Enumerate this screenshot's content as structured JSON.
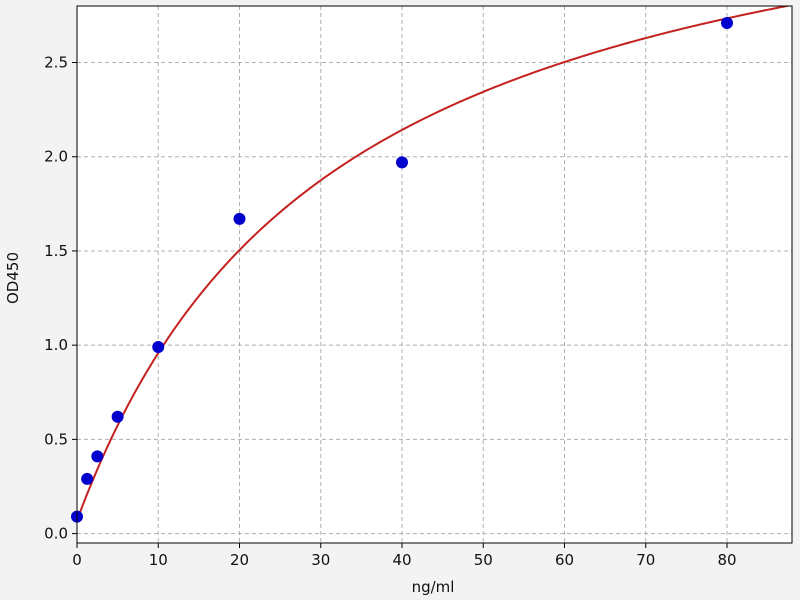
{
  "chart_data": {
    "type": "scatter",
    "title": "",
    "xlabel": "ng/ml",
    "ylabel": "OD450",
    "xlim": [
      0,
      88
    ],
    "ylim": [
      -0.05,
      2.8
    ],
    "x_ticks": [
      0,
      10,
      20,
      30,
      40,
      50,
      60,
      70,
      80
    ],
    "y_ticks": [
      0.0,
      0.5,
      1.0,
      1.5,
      2.0,
      2.5
    ],
    "x_tick_labels": [
      "0",
      "10",
      "20",
      "30",
      "40",
      "50",
      "60",
      "70",
      "80"
    ],
    "y_tick_labels": [
      "0.0",
      "0.5",
      "1.0",
      "1.5",
      "2.0",
      "2.5"
    ],
    "grid": true,
    "series": [
      {
        "kind": "points",
        "x": [
          0,
          1.25,
          2.5,
          5,
          10,
          20,
          40,
          80
        ],
        "y": [
          0.09,
          0.29,
          0.41,
          0.62,
          0.99,
          1.67,
          1.97,
          2.71
        ]
      }
    ],
    "fit_curve": {
      "model": "four-parameter logistic",
      "params": {
        "A": 0.07,
        "B": 1.0,
        "C": 32,
        "D": 3.8
      }
    },
    "colors": {
      "background": "#f3f3f3",
      "plot_background": "#ffffff",
      "points": "#0000cc",
      "curve": "#c42121",
      "grid": "#b0b0b0",
      "axis": "#000000"
    }
  }
}
